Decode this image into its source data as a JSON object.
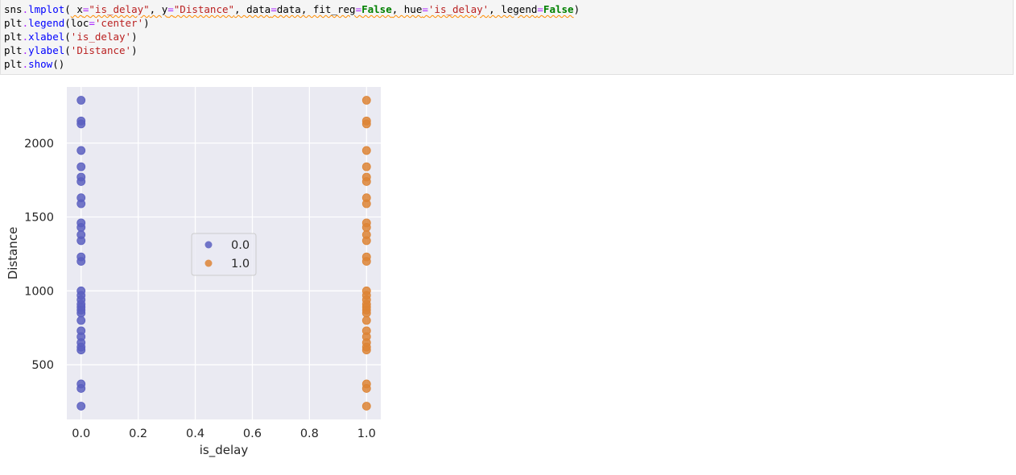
{
  "code_cell": {
    "lines": [
      [
        {
          "t": "sns",
          "c": "c-obj"
        },
        {
          "t": ".",
          "c": "c-op"
        },
        {
          "t": "lmplot",
          "c": "c-fn"
        },
        {
          "t": "(",
          "c": "c-obj"
        },
        {
          "t": " x",
          "c": "c-arg",
          "sq": true
        },
        {
          "t": "=",
          "c": "c-op",
          "sq": true
        },
        {
          "t": "\"is_delay\"",
          "c": "c-str",
          "sq": true
        },
        {
          "t": ", y",
          "c": "c-arg",
          "sq": true
        },
        {
          "t": "=",
          "c": "c-op",
          "sq": true
        },
        {
          "t": "\"Distance\"",
          "c": "c-str",
          "sq": true
        },
        {
          "t": ", data",
          "c": "c-arg",
          "sq": true
        },
        {
          "t": "=",
          "c": "c-op",
          "sq": true
        },
        {
          "t": "data, fit_reg",
          "c": "c-arg",
          "sq": true
        },
        {
          "t": "=",
          "c": "c-op",
          "sq": true
        },
        {
          "t": "False",
          "c": "c-kw",
          "sq": true
        },
        {
          "t": ", hue",
          "c": "c-arg",
          "sq": true
        },
        {
          "t": "=",
          "c": "c-op",
          "sq": true
        },
        {
          "t": "'is_delay'",
          "c": "c-str",
          "sq": true
        },
        {
          "t": ", legend",
          "c": "c-arg",
          "sq": true
        },
        {
          "t": "=",
          "c": "c-op",
          "sq": true
        },
        {
          "t": "False",
          "c": "c-kw",
          "sq": true
        },
        {
          "t": ")",
          "c": "c-obj"
        }
      ],
      [
        {
          "t": "plt",
          "c": "c-obj"
        },
        {
          "t": ".",
          "c": "c-op"
        },
        {
          "t": "legend",
          "c": "c-fn"
        },
        {
          "t": "(loc",
          "c": "c-obj"
        },
        {
          "t": "=",
          "c": "c-op"
        },
        {
          "t": "'center'",
          "c": "c-str"
        },
        {
          "t": ")",
          "c": "c-obj"
        }
      ],
      [
        {
          "t": "plt",
          "c": "c-obj"
        },
        {
          "t": ".",
          "c": "c-op"
        },
        {
          "t": "xlabel",
          "c": "c-fn"
        },
        {
          "t": "(",
          "c": "c-obj"
        },
        {
          "t": "'is_delay'",
          "c": "c-str"
        },
        {
          "t": ")",
          "c": "c-obj"
        }
      ],
      [
        {
          "t": "plt",
          "c": "c-obj"
        },
        {
          "t": ".",
          "c": "c-op"
        },
        {
          "t": "ylabel",
          "c": "c-fn"
        },
        {
          "t": "(",
          "c": "c-obj"
        },
        {
          "t": "'Distance'",
          "c": "c-str"
        },
        {
          "t": ")",
          "c": "c-obj"
        }
      ],
      [
        {
          "t": "plt",
          "c": "c-obj"
        },
        {
          "t": ".",
          "c": "c-op"
        },
        {
          "t": "show",
          "c": "c-fn"
        },
        {
          "t": "()",
          "c": "c-obj"
        }
      ]
    ]
  },
  "chart_data": {
    "type": "scatter",
    "title": "",
    "xlabel": "is_delay",
    "ylabel": "Distance",
    "xlim": [
      -0.05,
      1.05
    ],
    "ylim": [
      130,
      2380
    ],
    "x_ticks": [
      0.0,
      0.2,
      0.4,
      0.6,
      0.8,
      1.0
    ],
    "x_tick_labels": [
      "0.0",
      "0.2",
      "0.4",
      "0.6",
      "0.8",
      "1.0"
    ],
    "y_ticks": [
      500,
      1000,
      1500,
      2000
    ],
    "y_tick_labels": [
      "500",
      "1000",
      "1500",
      "2000"
    ],
    "grid": true,
    "legend_position": "center",
    "series": [
      {
        "name": "0.0",
        "color": "#5b5fc0",
        "x": 0.0,
        "y": [
          2290,
          2150,
          2130,
          1950,
          1840,
          1770,
          1740,
          1630,
          1590,
          1460,
          1430,
          1380,
          1340,
          1230,
          1200,
          1000,
          970,
          940,
          910,
          890,
          870,
          850,
          800,
          730,
          690,
          650,
          620,
          600,
          370,
          340,
          220
        ]
      },
      {
        "name": "1.0",
        "color": "#dd8435",
        "x": 1.0,
        "y": [
          2290,
          2150,
          2130,
          1950,
          1840,
          1770,
          1740,
          1630,
          1590,
          1460,
          1430,
          1380,
          1340,
          1230,
          1200,
          1000,
          970,
          940,
          910,
          890,
          870,
          850,
          800,
          730,
          690,
          650,
          620,
          600,
          370,
          340,
          220
        ]
      }
    ],
    "legend_entries": [
      "0.0",
      "1.0"
    ]
  }
}
